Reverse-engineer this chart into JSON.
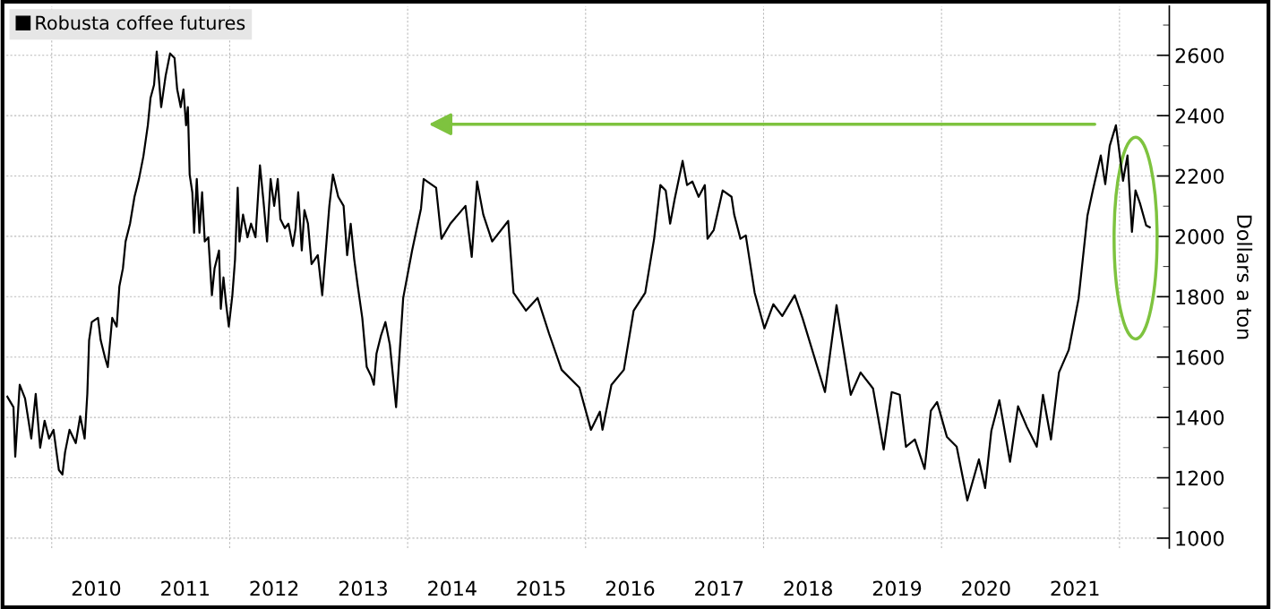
{
  "chart_data": {
    "type": "line",
    "ylabel": "Dollars a ton",
    "xlim": [
      2009.49,
      2022.56
    ],
    "ylim": [
      967,
      2763
    ],
    "xticks": [
      {
        "value": 2010,
        "label": null
      },
      {
        "value": 2010.5,
        "label": "2010"
      },
      {
        "value": 2011.5,
        "label": "2011"
      },
      {
        "value": 2012,
        "label": null
      },
      {
        "value": 2012.5,
        "label": "2012"
      },
      {
        "value": 2013.5,
        "label": "2013"
      },
      {
        "value": 2014,
        "label": null
      },
      {
        "value": 2014.5,
        "label": "2014"
      },
      {
        "value": 2015.5,
        "label": "2015"
      },
      {
        "value": 2016,
        "label": null
      },
      {
        "value": 2016.5,
        "label": "2016"
      },
      {
        "value": 2017.5,
        "label": "2017"
      },
      {
        "value": 2018,
        "label": null
      },
      {
        "value": 2018.5,
        "label": "2018"
      },
      {
        "value": 2019.5,
        "label": "2019"
      },
      {
        "value": 2020,
        "label": null
      },
      {
        "value": 2020.5,
        "label": "2020"
      },
      {
        "value": 2021.5,
        "label": "2021"
      },
      {
        "value": 2022,
        "label": null
      }
    ],
    "yticks": [
      1000,
      {
        "value": 1100,
        "label": null
      },
      1200,
      {
        "value": 1300,
        "label": null
      },
      1400,
      {
        "value": 1500,
        "label": null
      },
      1600,
      {
        "value": 1700,
        "label": null
      },
      1800,
      {
        "value": 1900,
        "label": null
      },
      2000,
      {
        "value": 2100,
        "label": null
      },
      2200,
      {
        "value": 2300,
        "label": null
      },
      2400,
      {
        "value": 2500,
        "label": null
      },
      2600,
      {
        "value": 2700,
        "label": null
      }
    ],
    "grid": true,
    "legend": "top left",
    "series": [
      {
        "name": "Robusta coffee futures",
        "color": "#000000",
        "x": [
          2009.5,
          2009.57,
          2009.59,
          2009.64,
          2009.7,
          2009.77,
          2009.82,
          2009.87,
          2009.92,
          2009.97,
          2010.02,
          2010.08,
          2010.12,
          2010.15,
          2010.2,
          2010.27,
          2010.32,
          2010.37,
          2010.4,
          2010.42,
          2010.45,
          2010.52,
          2010.55,
          2010.6,
          2010.63,
          2010.68,
          2010.73,
          2010.76,
          2010.8,
          2010.83,
          2010.88,
          2010.93,
          2010.98,
          2011.03,
          2011.08,
          2011.11,
          2011.15,
          2011.18,
          2011.23,
          2011.28,
          2011.33,
          2011.38,
          2011.41,
          2011.45,
          2011.48,
          2011.51,
          2011.53,
          2011.55,
          2011.58,
          2011.6,
          2011.63,
          2011.66,
          2011.69,
          2011.72,
          2011.76,
          2011.8,
          2011.83,
          2011.88,
          2011.9,
          2011.93,
          2011.96,
          2011.99,
          2012.03,
          2012.06,
          2012.09,
          2012.11,
          2012.15,
          2012.2,
          2012.24,
          2012.29,
          2012.34,
          2012.38,
          2012.42,
          2012.46,
          2012.5,
          2012.54,
          2012.57,
          2012.62,
          2012.66,
          2012.71,
          2012.74,
          2012.77,
          2012.81,
          2012.84,
          2012.88,
          2012.92,
          2012.99,
          2013.04,
          2013.12,
          2013.16,
          2013.22,
          2013.28,
          2013.32,
          2013.36,
          2013.4,
          2013.44,
          2013.49,
          2013.54,
          2013.59,
          2013.62,
          2013.65,
          2013.7,
          2013.75,
          2013.8,
          2013.87,
          2013.95,
          2014.05,
          2014.15,
          2014.18,
          2014.32,
          2014.38,
          2014.48,
          2014.65,
          2014.72,
          2014.78,
          2014.85,
          2014.95,
          2015.13,
          2015.19,
          2015.33,
          2015.46,
          2015.59,
          2015.73,
          2015.93,
          2016.06,
          2016.16,
          2016.19,
          2016.29,
          2016.43,
          2016.54,
          2016.67,
          2016.77,
          2016.84,
          2016.9,
          2016.95,
          2017.0,
          2017.09,
          2017.14,
          2017.2,
          2017.27,
          2017.34,
          2017.37,
          2017.44,
          2017.54,
          2017.64,
          2017.67,
          2017.74,
          2017.8,
          2017.9,
          2018.01,
          2018.11,
          2018.21,
          2018.35,
          2018.44,
          2018.69,
          2018.82,
          2018.98,
          2019.09,
          2019.23,
          2019.35,
          2019.44,
          2019.53,
          2019.6,
          2019.7,
          2019.81,
          2019.88,
          2019.95,
          2020.06,
          2020.17,
          2020.29,
          2020.42,
          2020.49,
          2020.56,
          2020.65,
          2020.77,
          2020.86,
          2020.96,
          2021.07,
          2021.14,
          2021.23,
          2021.32,
          2021.43,
          2021.54,
          2021.64,
          2021.7,
          2021.79,
          2021.84,
          2021.89,
          2021.96,
          2022.04,
          2022.09,
          2022.14,
          2022.18,
          2022.23,
          2022.3,
          2022.34
        ],
        "values": [
          1469,
          1434,
          1270,
          1508,
          1463,
          1330,
          1478,
          1300,
          1389,
          1330,
          1359,
          1226,
          1211,
          1285,
          1359,
          1315,
          1404,
          1330,
          1478,
          1656,
          1716,
          1730,
          1656,
          1597,
          1567,
          1730,
          1701,
          1834,
          1894,
          1983,
          2042,
          2131,
          2190,
          2265,
          2368,
          2458,
          2502,
          2612,
          2428,
          2532,
          2606,
          2591,
          2487,
          2428,
          2487,
          2368,
          2428,
          2205,
          2146,
          2012,
          2190,
          2012,
          2146,
          1983,
          1997,
          1805,
          1894,
          1953,
          1760,
          1864,
          1775,
          1701,
          1805,
          1923,
          2161,
          1983,
          2072,
          1997,
          2042,
          1997,
          2235,
          2116,
          1983,
          2190,
          2101,
          2190,
          2057,
          2027,
          2042,
          1968,
          2027,
          2146,
          1953,
          2087,
          2042,
          1908,
          1938,
          1805,
          2101,
          2205,
          2131,
          2101,
          1938,
          2042,
          1923,
          1834,
          1730,
          1567,
          1537,
          1508,
          1612,
          1671,
          1716,
          1641,
          1434,
          1796,
          1953,
          2092,
          2190,
          2161,
          1992,
          2042,
          2101,
          1932,
          2182,
          2072,
          1983,
          2051,
          1813,
          1754,
          1796,
          1677,
          1558,
          1499,
          1359,
          1419,
          1359,
          1508,
          1558,
          1754,
          1813,
          1992,
          2170,
          2152,
          2042,
          2122,
          2250,
          2170,
          2182,
          2131,
          2170,
          1992,
          2021,
          2152,
          2131,
          2072,
          1992,
          2003,
          1813,
          1695,
          1775,
          1736,
          1805,
          1727,
          1484,
          1772,
          1475,
          1549,
          1496,
          1294,
          1484,
          1475,
          1303,
          1327,
          1229,
          1422,
          1451,
          1336,
          1303,
          1125,
          1261,
          1166,
          1356,
          1457,
          1253,
          1437,
          1368,
          1303,
          1475,
          1327,
          1549,
          1624,
          1793,
          2069,
          2152,
          2268,
          2173,
          2300,
          2368,
          2184,
          2268,
          2015,
          2152,
          2110,
          2036,
          2030
        ]
      }
    ]
  }
}
